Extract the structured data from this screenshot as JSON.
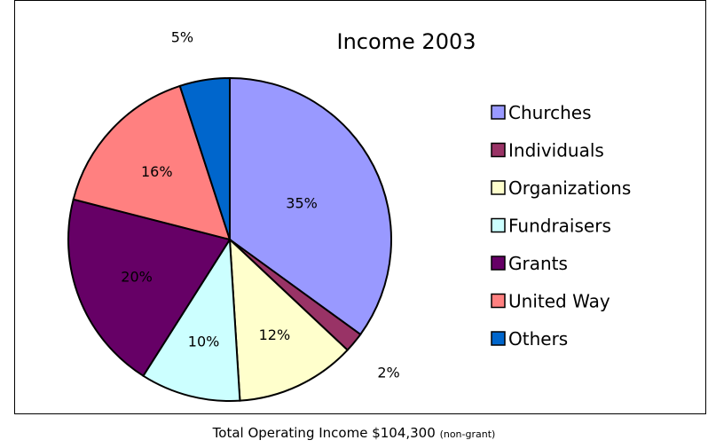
{
  "chart_data": {
    "type": "pie",
    "title": "Income 2003",
    "categories": [
      "Churches",
      "Individuals",
      "Organizations",
      "Fundraisers",
      "Grants",
      "United Way",
      "Others"
    ],
    "values": [
      35,
      2,
      12,
      10,
      20,
      16,
      5
    ],
    "value_labels": [
      "35%",
      "2%",
      "12%",
      "10%",
      "20%",
      "16%",
      "5%"
    ],
    "colors": [
      "#9999ff",
      "#993366",
      "#ffffcc",
      "#ccffff",
      "#660066",
      "#ff8080",
      "#0066cc"
    ],
    "legend_position": "right",
    "start_angle": "top, clockwise"
  },
  "caption": {
    "main": "Total Operating Income $104,300",
    "note": "(non-grant)"
  }
}
